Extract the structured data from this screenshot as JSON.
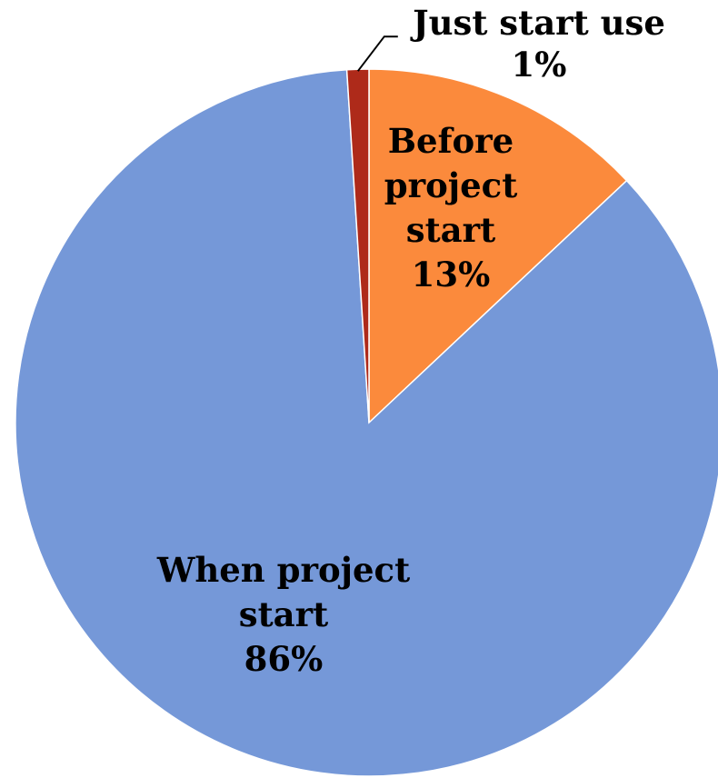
{
  "chart_data": {
    "type": "pie",
    "start_angle_deg": 0,
    "direction": "clockwise",
    "slices": [
      {
        "label": [
          "Before",
          "project",
          "start"
        ],
        "value": 13,
        "value_label": "13%",
        "color": "#FB8A3C"
      },
      {
        "label": [
          "When project",
          "start"
        ],
        "value": 86,
        "value_label": "86%",
        "color": "#7598D8"
      },
      {
        "label": [
          "Just start use"
        ],
        "value": 1,
        "value_label": "1%",
        "color": "#AE2A1A"
      }
    ],
    "legend": "none"
  }
}
